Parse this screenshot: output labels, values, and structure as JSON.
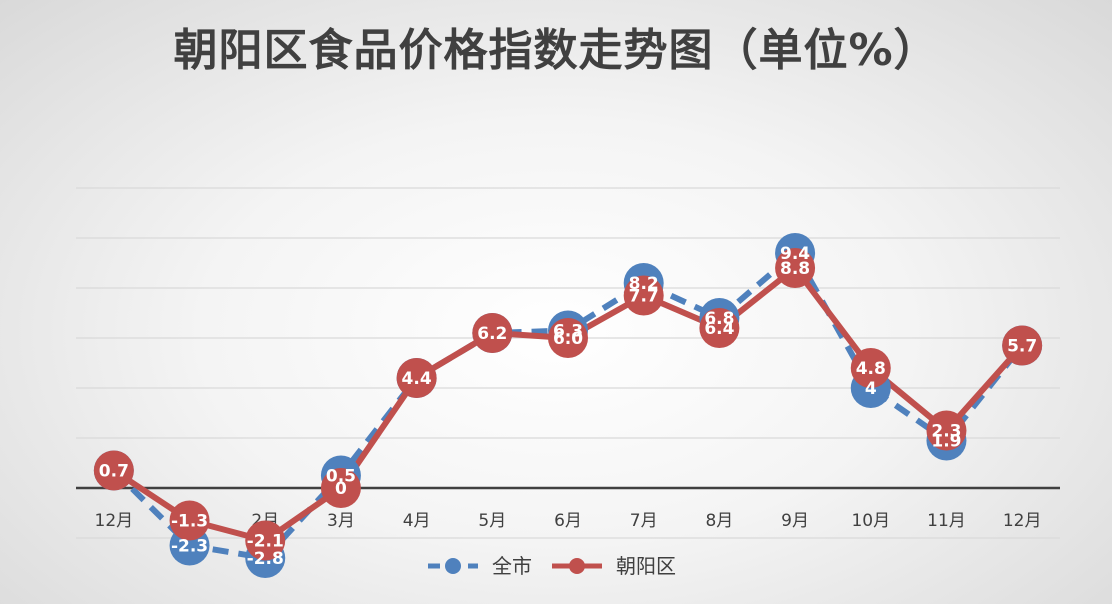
{
  "title": "朝阳区食品价格指数走势图（单位%）",
  "colors": {
    "city": "#4f81bd",
    "chaoyang": "#c0504d",
    "grid": "#d9d9d9",
    "axis": "#404040"
  },
  "chart_data": {
    "type": "line",
    "title": "朝阳区食品价格指数走势图（单位%）",
    "categories": [
      "12月",
      "1月",
      "2月",
      "3月",
      "4月",
      "5月",
      "6月",
      "7月",
      "8月",
      "9月",
      "10月",
      "11月",
      "12月"
    ],
    "ylim": [
      -2,
      12
    ],
    "grid": true,
    "legend_position": "bottom",
    "series": [
      {
        "name": "全市",
        "style": "dashed-with-markers",
        "color": "#4f81bd",
        "values": [
          0.7,
          -2.3,
          -2.8,
          0.5,
          4.4,
          6.2,
          6.3,
          8.2,
          6.8,
          9.4,
          4,
          1.9,
          5.7
        ],
        "labels": [
          "",
          "-2.3",
          "-2.8",
          "0.5",
          "",
          "",
          "6.3",
          "8.2",
          "6.8",
          "9.4",
          "4",
          "1.9",
          ""
        ]
      },
      {
        "name": "朝阳区",
        "style": "solid-with-markers",
        "color": "#c0504d",
        "values": [
          0.7,
          -1.3,
          -2.1,
          0,
          4.4,
          6.2,
          6.0,
          7.7,
          6.4,
          8.8,
          4.8,
          2.3,
          5.7
        ],
        "labels": [
          "0.7",
          "-1.3",
          "-2.1",
          "0",
          "4.4",
          "6.2",
          "6.0",
          "7.7",
          "6.4",
          "8.8",
          "4.8",
          "2.3",
          "5.7"
        ]
      }
    ]
  }
}
